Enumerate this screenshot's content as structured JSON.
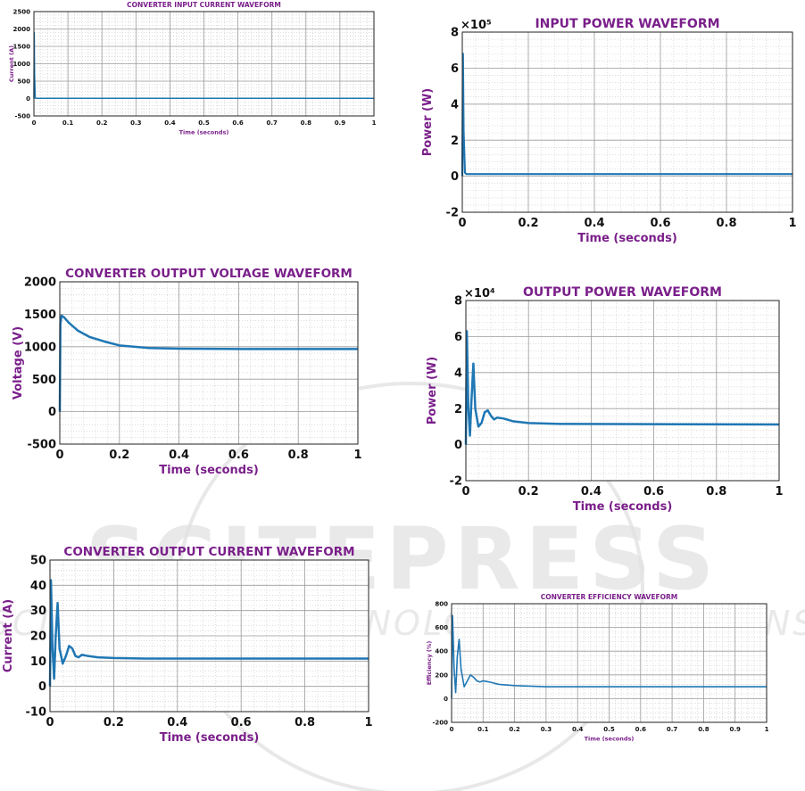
{
  "watermark": {
    "main": "SCITEPRESS",
    "sub": "SCIENCE AND TECHNOLOGY PUBLICATIONS"
  },
  "chart_data": [
    {
      "id": "input-current",
      "type": "line",
      "title": "CONVERTER INPUT CURRENT WAVEFORM",
      "xlabel": "Time (seconds)",
      "ylabel": "Current (A)",
      "xlim": [
        0,
        1
      ],
      "ylim": [
        -500,
        2500
      ],
      "xticks": [
        0,
        0.1,
        0.2,
        0.3,
        0.4,
        0.5,
        0.6,
        0.7,
        0.8,
        0.9,
        1
      ],
      "yticks": [
        -500,
        0,
        500,
        1000,
        1500,
        2000,
        2500
      ],
      "ytick_labels": [
        "-500",
        "0",
        "500",
        "1000",
        "1500",
        "2000",
        "2500"
      ],
      "exponent": "",
      "grid": true,
      "color": "#1f77b4",
      "series": [
        {
          "x": [
            0,
            0.001,
            0.002,
            0.004,
            0.006,
            1
          ],
          "y": [
            0,
            1900,
            700,
            30,
            5,
            5
          ]
        }
      ]
    },
    {
      "id": "input-power",
      "type": "line",
      "title": "INPUT POWER WAVEFORM",
      "xlabel": "Time (seconds)",
      "ylabel": "Power (W)",
      "xlim": [
        0,
        1
      ],
      "ylim": [
        -2,
        8
      ],
      "xticks": [
        0,
        0.2,
        0.4,
        0.6,
        0.8,
        1
      ],
      "yticks": [
        -2,
        0,
        2,
        4,
        6,
        8
      ],
      "ytick_labels": [
        "-2",
        "0",
        "2",
        "4",
        "6",
        "8"
      ],
      "exponent": "×10⁵",
      "grid": true,
      "color": "#1f77b4",
      "series": [
        {
          "x": [
            0,
            0.002,
            0.004,
            0.008,
            0.012,
            1
          ],
          "y": [
            0,
            6.8,
            2.5,
            0.2,
            0.12,
            0.12
          ]
        }
      ]
    },
    {
      "id": "output-voltage",
      "type": "line",
      "title": "CONVERTER OUTPUT VOLTAGE WAVEFORM",
      "xlabel": "Time (seconds)",
      "ylabel": "Voltage (V)",
      "xlim": [
        0,
        1
      ],
      "ylim": [
        -500,
        2000
      ],
      "xticks": [
        0,
        0.2,
        0.4,
        0.6,
        0.8,
        1
      ],
      "yticks": [
        -500,
        0,
        500,
        1000,
        1500,
        2000
      ],
      "ytick_labels": [
        "-500",
        "0",
        "500",
        "1000",
        "1500",
        "2000"
      ],
      "exponent": "",
      "grid": true,
      "color": "#1f77b4",
      "series": [
        {
          "x": [
            0,
            0.002,
            0.006,
            0.015,
            0.03,
            0.045,
            0.06,
            0.08,
            0.1,
            0.15,
            0.2,
            0.3,
            0.4,
            0.6,
            1
          ],
          "y": [
            0,
            1350,
            1480,
            1450,
            1370,
            1310,
            1250,
            1200,
            1150,
            1080,
            1020,
            980,
            970,
            965,
            965
          ]
        }
      ]
    },
    {
      "id": "output-power",
      "type": "line",
      "title": "OUTPUT POWER WAVEFORM",
      "xlabel": "Time (seconds)",
      "ylabel": "Power (W)",
      "xlim": [
        0,
        1
      ],
      "ylim": [
        -2,
        8
      ],
      "xticks": [
        0,
        0.2,
        0.4,
        0.6,
        0.8,
        1
      ],
      "yticks": [
        -2,
        0,
        2,
        4,
        6,
        8
      ],
      "ytick_labels": [
        "-2",
        "0",
        "2",
        "4",
        "6",
        "8"
      ],
      "exponent": "×10⁴",
      "grid": true,
      "color": "#1f77b4",
      "series": [
        {
          "x": [
            0,
            0.003,
            0.008,
            0.013,
            0.018,
            0.024,
            0.03,
            0.04,
            0.05,
            0.06,
            0.07,
            0.08,
            0.09,
            0.1,
            0.12,
            0.15,
            0.2,
            0.3,
            1
          ],
          "y": [
            0,
            6.3,
            2.0,
            0.5,
            2.5,
            4.5,
            2.0,
            1.0,
            1.2,
            1.8,
            1.9,
            1.6,
            1.4,
            1.5,
            1.45,
            1.3,
            1.2,
            1.15,
            1.12
          ]
        }
      ]
    },
    {
      "id": "output-current",
      "type": "line",
      "title": "CONVERTER OUTPUT CURRENT WAVEFORM",
      "xlabel": "Time (seconds)",
      "ylabel": "Current (A)",
      "xlim": [
        0,
        1
      ],
      "ylim": [
        -10,
        50
      ],
      "xticks": [
        0,
        0.2,
        0.4,
        0.6,
        0.8,
        1
      ],
      "yticks": [
        -10,
        0,
        10,
        20,
        30,
        40,
        50
      ],
      "ytick_labels": [
        "-10",
        "0",
        "10",
        "20",
        "30",
        "40",
        "50"
      ],
      "exponent": "",
      "grid": true,
      "color": "#1f77b4",
      "series": [
        {
          "x": [
            0,
            0.003,
            0.008,
            0.013,
            0.018,
            0.024,
            0.03,
            0.04,
            0.05,
            0.06,
            0.07,
            0.08,
            0.09,
            0.1,
            0.12,
            0.15,
            0.2,
            0.3,
            1
          ],
          "y": [
            0,
            42,
            15,
            3,
            20,
            33,
            15,
            9,
            12,
            16,
            15,
            12,
            11.5,
            12.5,
            12,
            11.5,
            11.2,
            11,
            11
          ]
        }
      ]
    },
    {
      "id": "efficiency",
      "type": "line",
      "title": "CONVERTER EFFICIENCY WAVEFORM",
      "xlabel": "Time (seconds)",
      "ylabel": "Efficiency (%)",
      "xlim": [
        0,
        1
      ],
      "ylim": [
        -200,
        800
      ],
      "xticks": [
        0,
        0.1,
        0.2,
        0.3,
        0.4,
        0.5,
        0.6,
        0.7,
        0.8,
        0.9,
        1
      ],
      "yticks": [
        -200,
        0,
        200,
        400,
        600,
        800
      ],
      "ytick_labels": [
        "-200",
        "0",
        "200",
        "400",
        "600",
        "800"
      ],
      "exponent": "",
      "grid": true,
      "color": "#1f77b4",
      "series": [
        {
          "x": [
            0,
            0.003,
            0.008,
            0.013,
            0.018,
            0.024,
            0.03,
            0.04,
            0.05,
            0.06,
            0.07,
            0.08,
            0.09,
            0.1,
            0.12,
            0.15,
            0.2,
            0.3,
            1
          ],
          "y": [
            0,
            700,
            250,
            50,
            350,
            500,
            250,
            100,
            150,
            200,
            180,
            150,
            140,
            150,
            140,
            120,
            110,
            100,
            100
          ]
        }
      ]
    }
  ]
}
